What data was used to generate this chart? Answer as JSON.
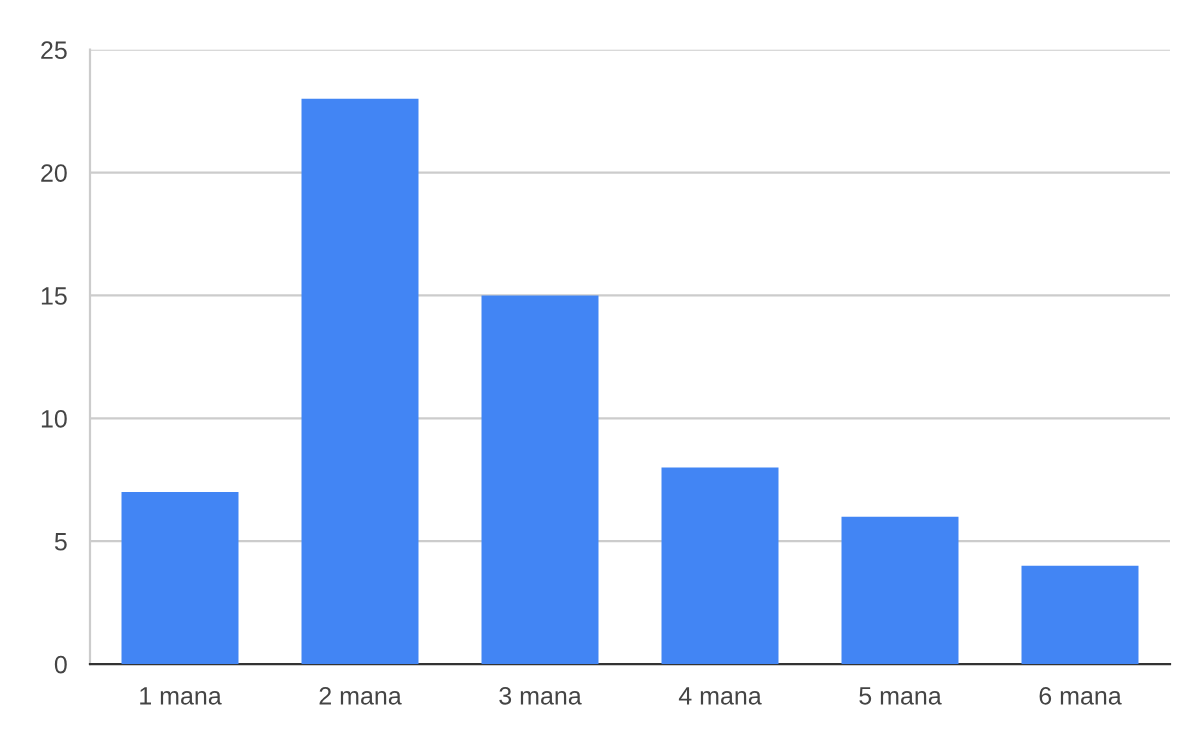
{
  "chart_data": {
    "type": "bar",
    "categories": [
      "1 mana",
      "2 mana",
      "3 mana",
      "4 mana",
      "5 mana",
      "6 mana"
    ],
    "values": [
      7,
      23,
      15,
      8,
      6,
      4
    ],
    "color": "#4285f4",
    "ylim": [
      0,
      25
    ],
    "yticks": [
      0,
      5,
      10,
      15,
      20,
      25
    ],
    "grid": "y",
    "legend": false
  }
}
